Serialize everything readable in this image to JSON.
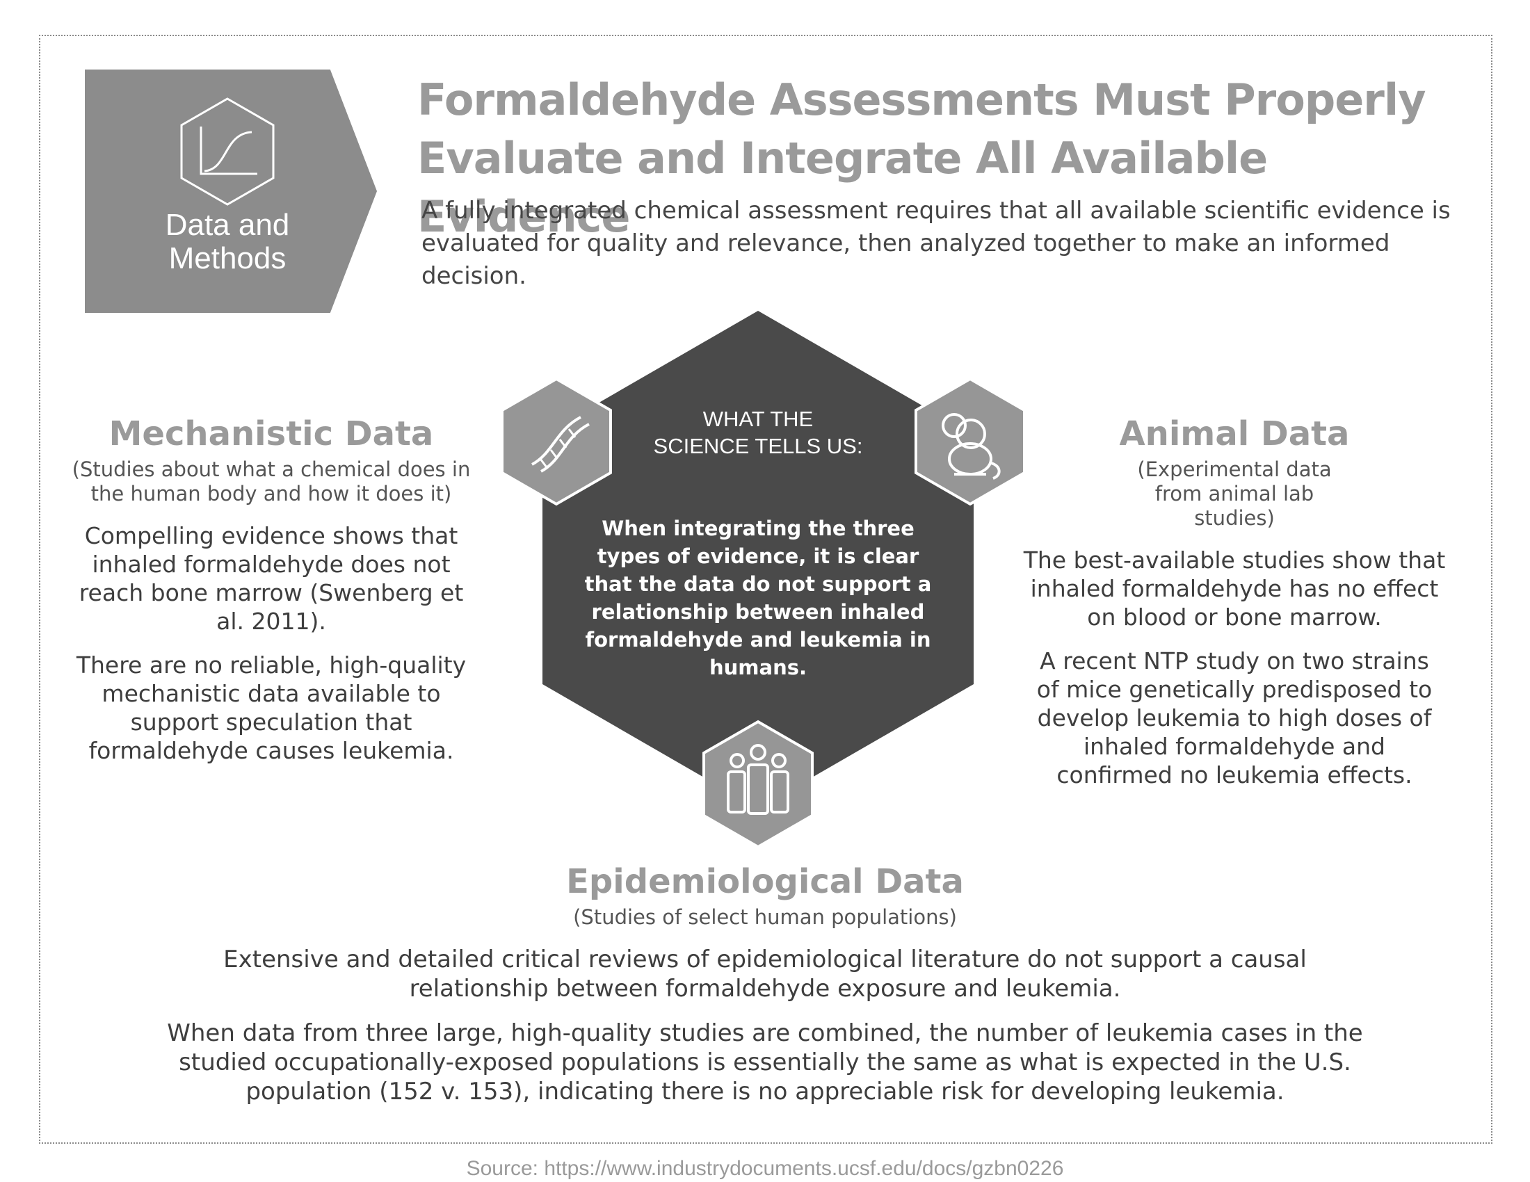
{
  "header": {
    "badge_label_line1": "Data and",
    "badge_label_line2": "Methods",
    "badge_icon": "chart-curve-icon",
    "title_line1": "Formaldehyde Assessments Must Properly",
    "title_line2": "Evaluate and Integrate All Available Evidence",
    "intro": "A fully integrated chemical assessment requires that all available scientific evidence is evaluated for quality and relevance, then analyzed together to make an informed decision."
  },
  "center": {
    "heading_line1": "WHAT THE",
    "heading_line2": "SCIENCE TELLS US:",
    "body": "When integrating the three types of evidence, it is clear that the data do not support a relationship between inhaled formaldehyde and leukemia in humans."
  },
  "mechanistic": {
    "icon": "dna-icon",
    "title": "Mechanistic Data",
    "subtitle": "(Studies about what a chemical does in the human body and how it does it)",
    "p1": "Compelling evidence shows that inhaled formaldehyde does not reach bone marrow (Swenberg et al. 2011).",
    "p2": "There are no reliable, high-quality mechanistic data available to support speculation that formaldehyde causes leukemia."
  },
  "animal": {
    "icon": "mouse-icon",
    "title": "Animal Data",
    "subtitle": "(Experimental data from animal lab studies)",
    "p1": "The best-available studies show that inhaled formaldehyde has no effect on blood or bone marrow.",
    "p2": "A recent NTP study on two strains of mice genetically predisposed to develop leukemia to high doses of inhaled formaldehyde and confirmed no leukemia effects."
  },
  "epidemiological": {
    "icon": "people-icon",
    "title": "Epidemiological Data",
    "subtitle": "(Studies of select human populations)",
    "p1": "Extensive and detailed critical reviews of epidemiological literature do not support a causal relationship between formaldehyde exposure and leukemia.",
    "p2": "When data from three large, high-quality studies are combined, the number of leukemia cases in the studied occupationally-exposed populations is essentially the same as what is expected in the U.S. population (152 v. 153), indicating there is no appreciable risk for developing leukemia."
  },
  "source": "Source: https://www.industrydocuments.ucsf.edu/docs/gzbn0226",
  "colors": {
    "dark_hexagon": "#4a4a4a",
    "grey_accent": "#9a9a9a",
    "text": "#3e3e3e"
  }
}
